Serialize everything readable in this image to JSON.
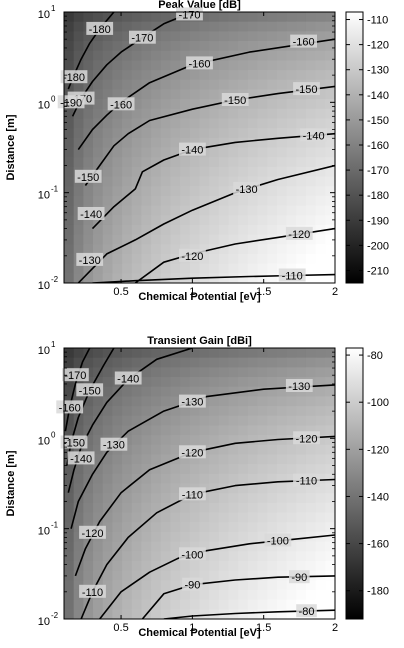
{
  "chart_data": [
    {
      "type": "heatmap",
      "title": "Peak Value [dB]",
      "xlabel": "Chemical Potential [eV]",
      "ylabel": "Distance [m]",
      "xlim": [
        0.1,
        2
      ],
      "ylim": [
        0.01,
        10
      ],
      "y_scale": "log",
      "grid": false,
      "colormap": "gray",
      "x_ticks": [
        "0.5",
        "1",
        "1.5",
        "2"
      ],
      "y_ticks": [
        {
          "base": "10",
          "exp": "-2"
        },
        {
          "base": "10",
          "exp": "-1"
        },
        {
          "base": "10",
          "exp": "0"
        },
        {
          "base": "10",
          "exp": "1"
        }
      ],
      "colorbar": {
        "range": [
          -215,
          -107
        ],
        "ticks": [
          "-110",
          "-120",
          "-130",
          "-140",
          "-150",
          "-160",
          "-170",
          "-180",
          "-190",
          "-200",
          "-210"
        ]
      },
      "contours": [
        {
          "level": "-110",
          "x": [
            0.3,
            0.6,
            1.0,
            1.4,
            1.7,
            2.0
          ],
          "y": [
            0.01,
            0.0106,
            0.0113,
            0.0118,
            0.0121,
            0.0124
          ],
          "label_at": [
            1.7,
            0.0121
          ]
        },
        {
          "level": "-120",
          "x": [
            0.6,
            0.8,
            1.0,
            1.3,
            1.6,
            2.0
          ],
          "y": [
            0.01,
            0.017,
            0.021,
            0.027,
            0.032,
            0.04
          ],
          "label_at": [
            1.75,
            0.035
          ]
        },
        {
          "level": "-130",
          "x": [
            0.2,
            0.4,
            0.6,
            0.8,
            1.0,
            1.3,
            1.6,
            2.0
          ],
          "y": [
            0.01,
            0.021,
            0.03,
            0.045,
            0.064,
            0.1,
            0.14,
            0.2
          ],
          "label_at": [
            1.38,
            0.11
          ]
        },
        {
          "level": "-140",
          "x": [
            0.3,
            0.45,
            0.6,
            0.65,
            0.8,
            1.0,
            1.3,
            1.6,
            2.0
          ],
          "y": [
            0.04,
            0.07,
            0.11,
            0.17,
            0.23,
            0.3,
            0.36,
            0.4,
            0.45
          ],
          "label_at": [
            1.0,
            0.3
          ]
        },
        {
          "level": "-150",
          "x": [
            0.25,
            0.35,
            0.45,
            0.55,
            0.7,
            1.0,
            1.3,
            1.6,
            2.0
          ],
          "y": [
            0.12,
            0.2,
            0.33,
            0.45,
            0.63,
            0.84,
            1.06,
            1.25,
            1.5
          ],
          "label_at": [
            1.3,
            1.06
          ]
        },
        {
          "level": "-160",
          "x": [
            0.2,
            0.3,
            0.4,
            0.5,
            0.7,
            1.0,
            1.4,
            2.0
          ],
          "y": [
            0.3,
            0.5,
            0.72,
            1.0,
            1.65,
            2.6,
            3.6,
            5.0
          ],
          "label_at": [
            1.05,
            2.7
          ]
        },
        {
          "level": "-170",
          "x": [
            0.16,
            0.22,
            0.3,
            0.4,
            0.5,
            0.65,
            0.8,
            1.0
          ],
          "y": [
            0.7,
            1.1,
            1.7,
            2.6,
            3.6,
            5.2,
            7.4,
            10.0
          ],
          "label_at": [
            0.65,
            5.2
          ]
        },
        {
          "level": "-180",
          "x": [
            0.13,
            0.17,
            0.22,
            0.28,
            0.35,
            0.45
          ],
          "y": [
            1.4,
            2.0,
            3.0,
            4.5,
            6.5,
            10.0
          ],
          "label_at": [
            0.35,
            6.5
          ]
        }
      ],
      "contour_labels": [
        {
          "text": "-110",
          "at": [
            1.7,
            0.0121
          ]
        },
        {
          "text": "-120",
          "at": [
            1.75,
            0.035
          ]
        },
        {
          "text": "-120",
          "at": [
            1.0,
            0.02
          ]
        },
        {
          "text": "-130",
          "at": [
            1.38,
            0.11
          ]
        },
        {
          "text": "-130",
          "at": [
            0.28,
            0.018
          ]
        },
        {
          "text": "-140",
          "at": [
            1.0,
            0.3
          ]
        },
        {
          "text": "-140",
          "at": [
            0.29,
            0.058
          ]
        },
        {
          "text": "-140",
          "at": [
            1.85,
            0.43
          ]
        },
        {
          "text": "-150",
          "at": [
            1.3,
            1.06
          ]
        },
        {
          "text": "-150",
          "at": [
            0.27,
            0.15
          ]
        },
        {
          "text": "-150",
          "at": [
            1.8,
            1.4
          ]
        },
        {
          "text": "-160",
          "at": [
            1.05,
            2.7
          ]
        },
        {
          "text": "-160",
          "at": [
            0.5,
            0.95
          ]
        },
        {
          "text": "-160",
          "at": [
            1.78,
            4.7
          ]
        },
        {
          "text": "-170",
          "at": [
            0.65,
            5.2
          ]
        },
        {
          "text": "-170",
          "at": [
            0.22,
            1.1
          ]
        },
        {
          "text": "-170",
          "at": [
            0.98,
            9.4
          ]
        },
        {
          "text": "-180",
          "at": [
            0.35,
            6.5
          ]
        },
        {
          "text": "-180",
          "at": [
            0.17,
            1.9
          ]
        },
        {
          "text": "-190",
          "at": [
            0.15,
            1.0
          ]
        }
      ]
    },
    {
      "type": "heatmap",
      "title": "Transient Gain [dBi]",
      "xlabel": "Chemical Potential [eV]",
      "ylabel": "Distance [m]",
      "xlim": [
        0.1,
        2
      ],
      "ylim": [
        0.01,
        10
      ],
      "y_scale": "log",
      "grid": false,
      "colormap": "gray",
      "x_ticks": [
        "0.5",
        "1",
        "1.5",
        "2"
      ],
      "y_ticks": [
        {
          "base": "10",
          "exp": "-2"
        },
        {
          "base": "10",
          "exp": "-1"
        },
        {
          "base": "10",
          "exp": "0"
        },
        {
          "base": "10",
          "exp": "1"
        }
      ],
      "colorbar": {
        "range": [
          -192,
          -77
        ],
        "ticks": [
          "-80",
          "-100",
          "-120",
          "-140",
          "-160",
          "-180"
        ]
      },
      "contours": [
        {
          "level": "-80",
          "x": [
            0.8,
            1.0,
            1.3,
            1.6,
            2.0
          ],
          "y": [
            0.01,
            0.0108,
            0.0115,
            0.012,
            0.0125
          ],
          "label_at": [
            1.8,
            0.0122
          ]
        },
        {
          "level": "-90",
          "x": [
            0.65,
            0.8,
            1.0,
            1.3,
            1.6,
            2.0
          ],
          "y": [
            0.01,
            0.019,
            0.024,
            0.027,
            0.029,
            0.03
          ],
          "label_at": [
            1.75,
            0.029
          ]
        },
        {
          "level": "-100",
          "x": [
            0.35,
            0.5,
            0.7,
            0.9,
            1.1,
            1.4,
            1.7,
            2.0
          ],
          "y": [
            0.01,
            0.02,
            0.033,
            0.047,
            0.057,
            0.068,
            0.076,
            0.085
          ],
          "label_at": [
            1.6,
            0.074
          ]
        },
        {
          "level": "-110",
          "x": [
            0.22,
            0.3,
            0.4,
            0.55,
            0.75,
            1.0,
            1.3,
            1.6,
            2.0
          ],
          "y": [
            0.01,
            0.02,
            0.04,
            0.08,
            0.15,
            0.24,
            0.3,
            0.33,
            0.35
          ],
          "label_at": [
            1.8,
            0.34
          ]
        },
        {
          "level": "-120",
          "x": [
            0.18,
            0.25,
            0.35,
            0.5,
            0.7,
            1.0,
            1.3,
            1.6,
            2.0
          ],
          "y": [
            0.03,
            0.06,
            0.12,
            0.25,
            0.45,
            0.7,
            0.88,
            0.97,
            1.05
          ],
          "label_at": [
            1.8,
            1.0
          ]
        },
        {
          "level": "-130",
          "x": [
            0.15,
            0.2,
            0.3,
            0.4,
            0.55,
            0.8,
            1.1,
            1.5,
            2.0
          ],
          "y": [
            0.1,
            0.2,
            0.4,
            0.7,
            1.2,
            2.0,
            2.9,
            3.5,
            3.9
          ],
          "label_at": [
            1.75,
            3.8
          ]
        },
        {
          "level": "-140",
          "x": [
            0.13,
            0.17,
            0.22,
            0.3,
            0.4,
            0.55,
            0.75,
            1.0
          ],
          "y": [
            0.25,
            0.45,
            0.8,
            1.4,
            2.5,
            4.5,
            7.5,
            10.0
          ],
          "label_at": [
            0.55,
            4.6
          ]
        },
        {
          "level": "-150",
          "x": [
            0.12,
            0.15,
            0.2,
            0.28,
            0.38,
            0.45
          ],
          "y": [
            0.5,
            0.9,
            1.7,
            3.4,
            6.5,
            10.0
          ],
          "label_at": [
            0.28,
            3.4
          ]
        },
        {
          "level": "-160",
          "x": [
            0.11,
            0.14,
            0.18,
            0.23,
            0.28
          ],
          "y": [
            1.2,
            2.2,
            4.0,
            7.0,
            10.0
          ],
          "label_at": [
            0.14,
            2.2
          ]
        }
      ],
      "contour_labels": [
        {
          "text": "-80",
          "at": [
            1.8,
            0.0122
          ]
        },
        {
          "text": "-90",
          "at": [
            1.0,
            0.024
          ]
        },
        {
          "text": "-90",
          "at": [
            1.75,
            0.029
          ]
        },
        {
          "text": "-100",
          "at": [
            1.0,
            0.052
          ]
        },
        {
          "text": "-100",
          "at": [
            1.6,
            0.074
          ]
        },
        {
          "text": "-110",
          "at": [
            0.3,
            0.02
          ]
        },
        {
          "text": "-110",
          "at": [
            1.0,
            0.24
          ]
        },
        {
          "text": "-110",
          "at": [
            1.8,
            0.34
          ]
        },
        {
          "text": "-120",
          "at": [
            0.3,
            0.09
          ]
        },
        {
          "text": "-120",
          "at": [
            1.0,
            0.7
          ]
        },
        {
          "text": "-120",
          "at": [
            1.8,
            1.0
          ]
        },
        {
          "text": "-130",
          "at": [
            0.45,
            0.85
          ]
        },
        {
          "text": "-130",
          "at": [
            1.0,
            2.55
          ]
        },
        {
          "text": "-130",
          "at": [
            1.75,
            3.8
          ]
        },
        {
          "text": "-140",
          "at": [
            0.55,
            4.6
          ]
        },
        {
          "text": "-140",
          "at": [
            0.22,
            0.6
          ]
        },
        {
          "text": "-150",
          "at": [
            0.28,
            3.4
          ]
        },
        {
          "text": "-150",
          "at": [
            0.17,
            0.9
          ]
        },
        {
          "text": "-160",
          "at": [
            0.14,
            2.2
          ]
        },
        {
          "text": "-170",
          "at": [
            0.18,
            5.0
          ]
        }
      ]
    }
  ]
}
